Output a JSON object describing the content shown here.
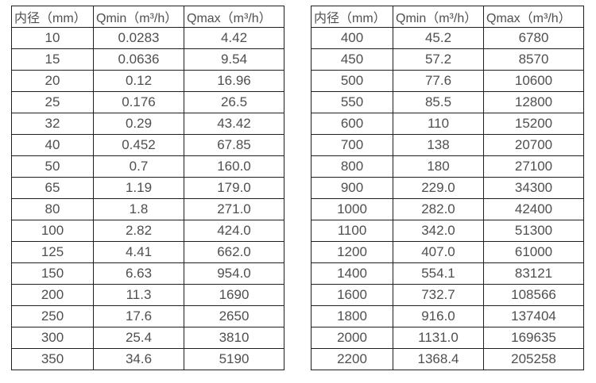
{
  "colors": {
    "background": "#ffffff",
    "border": "#1f1f1f",
    "text": "#4f4f4f"
  },
  "tables": [
    {
      "name": "flow-spec-table-small-diameters",
      "headers": [
        "内径（mm）",
        "Qmin（m³/h）",
        "Qmax（m³/h）"
      ],
      "rows": [
        [
          "10",
          "0.0283",
          "4.42"
        ],
        [
          "15",
          "0.0636",
          "9.54"
        ],
        [
          "20",
          "0.12",
          "16.96"
        ],
        [
          "25",
          "0.176",
          "26.5"
        ],
        [
          "32",
          "0.29",
          "43.42"
        ],
        [
          "40",
          "0.452",
          "67.85"
        ],
        [
          "50",
          "0.7",
          "160.0"
        ],
        [
          "65",
          "1.19",
          "179.0"
        ],
        [
          "80",
          "1.8",
          "271.0"
        ],
        [
          "100",
          "2.82",
          "424.0"
        ],
        [
          "125",
          "4.41",
          "662.0"
        ],
        [
          "150",
          "6.63",
          "954.0"
        ],
        [
          "200",
          "11.3",
          "1690"
        ],
        [
          "250",
          "17.6",
          "2650"
        ],
        [
          "300",
          "25.4",
          "3810"
        ],
        [
          "350",
          "34.6",
          "5190"
        ]
      ]
    },
    {
      "name": "flow-spec-table-large-diameters",
      "headers": [
        "内径（mm）",
        "Qmin（m³/h）",
        "Qmax（m³/h）"
      ],
      "rows": [
        [
          "400",
          "45.2",
          "6780"
        ],
        [
          "450",
          "57.2",
          "8570"
        ],
        [
          "500",
          "77.6",
          "10600"
        ],
        [
          "550",
          "85.5",
          "12800"
        ],
        [
          "600",
          "110",
          "15200"
        ],
        [
          "700",
          "138",
          "20700"
        ],
        [
          "800",
          "180",
          "27100"
        ],
        [
          "900",
          "229.0",
          "34300"
        ],
        [
          "1000",
          "282.0",
          "42400"
        ],
        [
          "1100",
          "342.0",
          "51300"
        ],
        [
          "1200",
          "407.0",
          "61000"
        ],
        [
          "1400",
          "554.1",
          "83121"
        ],
        [
          "1600",
          "732.7",
          "108566"
        ],
        [
          "1800",
          "916.0",
          "137404"
        ],
        [
          "2000",
          "1131.0",
          "169635"
        ],
        [
          "2200",
          "1368.4",
          "205258"
        ]
      ]
    }
  ]
}
